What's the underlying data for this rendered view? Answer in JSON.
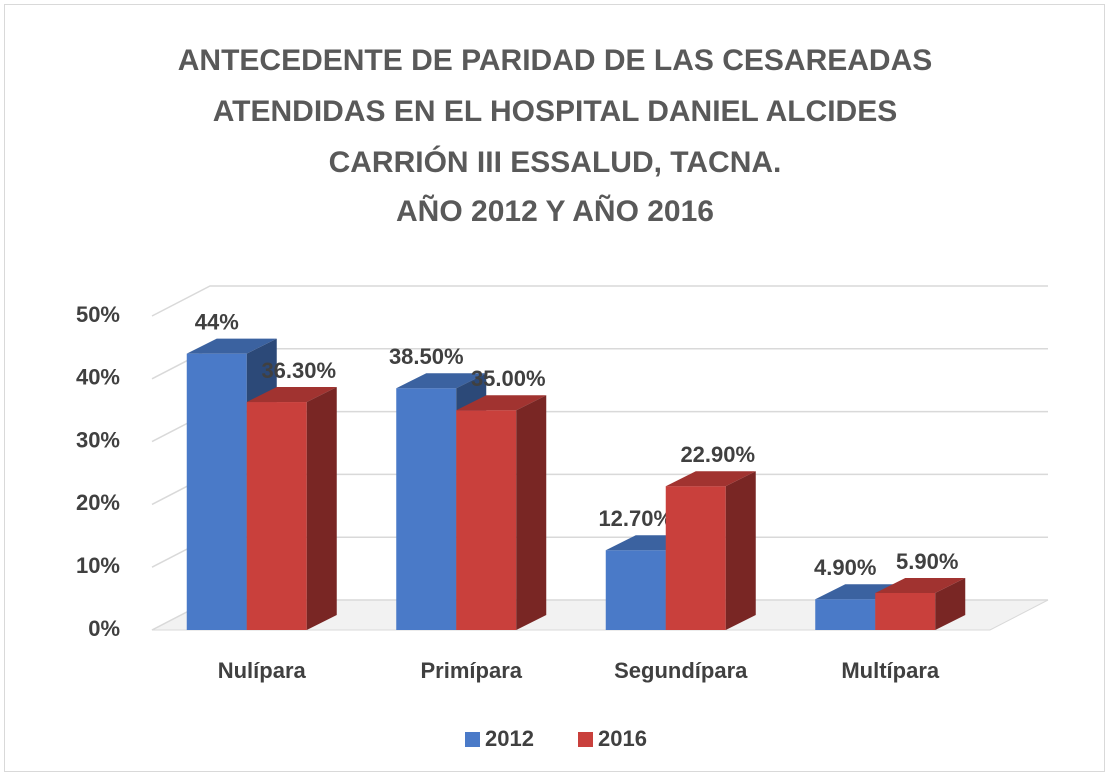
{
  "chart_data": {
    "type": "bar",
    "title": [
      "ANTECEDENTE DE PARIDAD DE LAS CESAREADAS",
      "ATENDIDAS EN EL HOSPITAL DANIEL ALCIDES",
      "CARRIÓN III ESSALUD, TACNA.",
      "AÑO 2012 Y AÑO 2016"
    ],
    "categories": [
      "Nulípara",
      "Primípara",
      "Segundípara",
      "Multípara"
    ],
    "series": [
      {
        "name": "2012",
        "color": "#4a7ac8",
        "values": [
          44,
          38.5,
          12.7,
          4.9
        ],
        "value_labels": [
          "44%",
          "38.50%",
          "12.70%",
          "4.90%"
        ]
      },
      {
        "name": "2016",
        "color": "#c9403c",
        "values": [
          36.3,
          35,
          22.9,
          5.9
        ],
        "value_labels": [
          "36.30%",
          "35.00%",
          "22.90%",
          "5.90%"
        ]
      }
    ],
    "ylim": [
      0,
      50
    ],
    "yticks": [
      {
        "value": 0,
        "label": "0%"
      },
      {
        "value": 10,
        "label": "10%"
      },
      {
        "value": 20,
        "label": "20%"
      },
      {
        "value": 30,
        "label": "30%"
      },
      {
        "value": 40,
        "label": "40%"
      },
      {
        "value": 50,
        "label": "50%"
      }
    ],
    "grid": true,
    "legend": "bottom"
  }
}
